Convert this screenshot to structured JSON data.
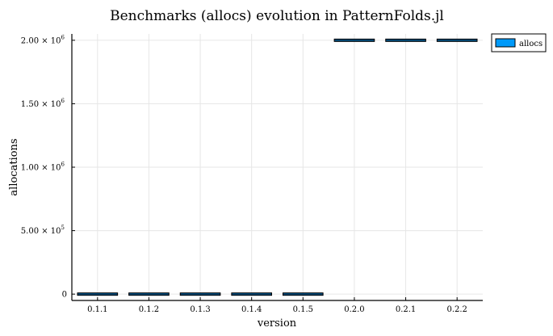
{
  "chart_data": {
    "type": "box",
    "title": "Benchmarks (allocs) evolution in PatternFolds.jl",
    "xlabel": "version",
    "ylabel": "allocations",
    "categories": [
      "0.1.1",
      "0.1.2",
      "0.1.3",
      "0.1.4",
      "0.1.5",
      "0.2.0",
      "0.2.1",
      "0.2.2"
    ],
    "series": [
      {
        "name": "allocs",
        "color": "#009AF9",
        "values": [
          0,
          0,
          0,
          0,
          0,
          2000000,
          2000000,
          2000000
        ]
      }
    ],
    "yticks": [
      {
        "value": 0,
        "mantissa": "0",
        "exp": ""
      },
      {
        "value": 500000,
        "mantissa": "5.00 × 10",
        "exp": "5"
      },
      {
        "value": 1000000,
        "mantissa": "1.00 × 10",
        "exp": "6"
      },
      {
        "value": 1500000,
        "mantissa": "1.50 × 10",
        "exp": "6"
      },
      {
        "value": 2000000,
        "mantissa": "2.00 × 10",
        "exp": "6"
      }
    ],
    "ylim": [
      -50000,
      2050000
    ],
    "grid": true,
    "legend_position": "outer-top-right"
  }
}
